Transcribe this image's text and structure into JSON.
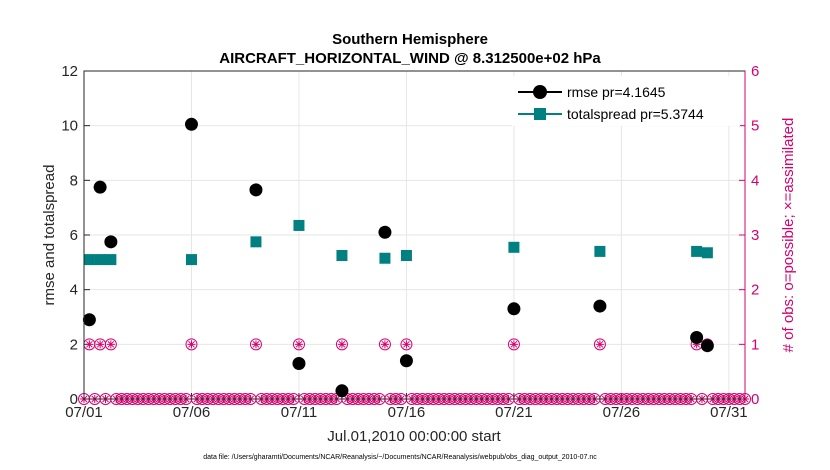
{
  "chart_data": {
    "type": "scatter",
    "title": "Southern Hemisphere",
    "subtitle": "AIRCRAFT_HORIZONTAL_WIND @ 8.312500e+02 hPa",
    "xlabel": "Jul.01,2010 00:00:00 start",
    "ylabel": "rmse and totalspread",
    "ylabel_right": "# of obs: o=possible; ×=assimilated",
    "footnote": "data file: /Users/gharamti/Documents/NCAR/Reanalysis/~/Documents/NCAR/Reanalysis/webpub/obs_diag_output_2010-07.nc",
    "xlim": [
      1,
      31.75
    ],
    "ylim": [
      0,
      12
    ],
    "ylim_right": [
      0,
      6
    ],
    "x_ticks": [
      1,
      6,
      11,
      16,
      21,
      26,
      31
    ],
    "x_tick_labels": [
      "07/01",
      "07/06",
      "07/11",
      "07/16",
      "07/21",
      "07/26",
      "07/31"
    ],
    "y_ticks": [
      0,
      2,
      4,
      6,
      8,
      10,
      12
    ],
    "y_tick_labels": [
      "0",
      "2",
      "4",
      "6",
      "8",
      "10",
      "12"
    ],
    "y_ticks_right": [
      0,
      1,
      2,
      3,
      4,
      5,
      6
    ],
    "y_tick_labels_right": [
      "0",
      "1",
      "2",
      "3",
      "4",
      "5",
      "6"
    ],
    "grid": true,
    "legend_position": "top-right",
    "series": [
      {
        "name": "rmse pr=4.1645",
        "color": "#000000",
        "marker": "circle",
        "axis": "left",
        "x": [
          1.25,
          1.75,
          2.25,
          6.0,
          9.0,
          11.0,
          13.0,
          15.0,
          16.0,
          21.0,
          25.0,
          29.5,
          30.0
        ],
        "y": [
          2.9,
          7.75,
          5.75,
          10.05,
          7.65,
          1.3,
          0.3,
          6.1,
          1.4,
          3.3,
          3.4,
          2.25,
          1.95
        ]
      },
      {
        "name": "totalspread pr=5.3744",
        "color": "#008080",
        "marker": "square",
        "axis": "left",
        "x": [
          1.25,
          1.75,
          2.25,
          6.0,
          9.0,
          11.0,
          13.0,
          15.0,
          16.0,
          21.0,
          25.0,
          29.5,
          30.0
        ],
        "y": [
          5.1,
          5.1,
          5.1,
          5.1,
          5.75,
          6.35,
          5.25,
          5.15,
          5.25,
          5.55,
          5.4,
          5.4,
          5.35
        ]
      },
      {
        "name": "obs possible",
        "color": "#d6006e",
        "marker": "circle-open",
        "axis": "right",
        "x_range": [
          1,
          31.75
        ],
        "x_step": 0.25,
        "nonzero_x": [
          1.25,
          1.75,
          2.25,
          6.0,
          9.0,
          11.0,
          13.0,
          15.0,
          16.0,
          21.0,
          25.0,
          29.5,
          30.0
        ],
        "nonzero_y": 1,
        "default_y": 0
      },
      {
        "name": "obs assimilated",
        "color": "#d6006e",
        "marker": "asterisk",
        "axis": "right",
        "x_range": [
          1,
          31.75
        ],
        "x_step": 0.25,
        "nonzero_x": [
          1.25,
          1.75,
          2.25,
          6.0,
          9.0,
          11.0,
          13.0,
          15.0,
          16.0,
          21.0,
          25.0,
          29.5,
          30.0
        ],
        "nonzero_y": 1,
        "default_y": 0
      }
    ]
  }
}
